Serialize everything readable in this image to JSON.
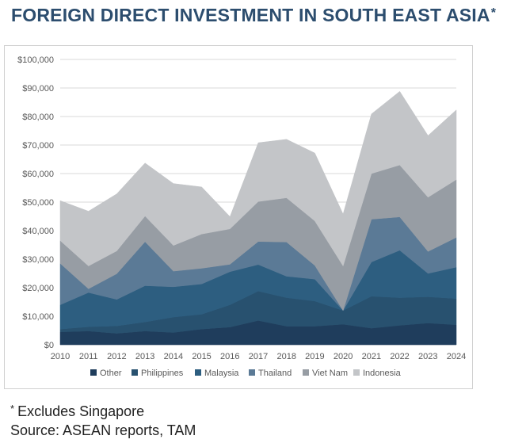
{
  "page": {
    "title": "FOREIGN DIRECT INVESTMENT IN SOUTH EAST ASIA",
    "title_asterisk": "*",
    "footnote_star": "*",
    "footnote_text": "Excludes Singapore",
    "source": "Source: ASEAN reports, TAM"
  },
  "colors": {
    "title": "#2c4d6e",
    "grid": "#d9d9d9",
    "tick_text": "#595959"
  },
  "chart_data": {
    "type": "area",
    "stacked": true,
    "title": "FOREIGN DIRECT INVESTMENT IN SOUTH EAST ASIA",
    "xlabel": "",
    "ylabel": "",
    "x": [
      "2010",
      "2011",
      "2012",
      "2013",
      "2014",
      "2015",
      "2016",
      "2017",
      "2018",
      "2019",
      "2020",
      "2021",
      "2022",
      "2023",
      "2024"
    ],
    "ylim": [
      0,
      100000
    ],
    "yticks": [
      0,
      10000,
      20000,
      30000,
      40000,
      50000,
      60000,
      70000,
      80000,
      90000,
      100000
    ],
    "ytick_labels": [
      "$0",
      "$10,000",
      "$20,000",
      "$30,000",
      "$40,000",
      "$50,000",
      "$60,000",
      "$70,000",
      "$80,000",
      "$90,000",
      "$100,000"
    ],
    "grid": true,
    "legend_position": "bottom",
    "series": [
      {
        "name": "Other",
        "color": "#1f3d5c",
        "values": [
          4500,
          4800,
          4000,
          4800,
          4300,
          5500,
          6200,
          8500,
          6500,
          6500,
          7200,
          5800,
          6800,
          7600,
          7000
        ]
      },
      {
        "name": "Philippines",
        "color": "#28516f",
        "values": [
          1000,
          1500,
          2600,
          3200,
          5400,
          5200,
          7800,
          10300,
          10000,
          8800,
          4800,
          11200,
          9700,
          9200,
          9200
        ]
      },
      {
        "name": "Malaysia",
        "color": "#2d5e80",
        "values": [
          8500,
          12000,
          9300,
          12700,
          10600,
          10600,
          11600,
          9300,
          7500,
          7700,
          0,
          12000,
          16600,
          8200,
          11000
        ]
      },
      {
        "name": "Thailand",
        "color": "#5b7a96",
        "values": [
          14500,
          1300,
          9000,
          15400,
          5500,
          5500,
          2600,
          8100,
          12000,
          4800,
          0,
          15000,
          11700,
          7700,
          10400
        ]
      },
      {
        "name": "Viet Nam",
        "color": "#979da4",
        "values": [
          8000,
          8000,
          8000,
          9000,
          9000,
          12000,
          12400,
          14000,
          15500,
          15600,
          15600,
          16000,
          18200,
          19000,
          20300
        ]
      },
      {
        "name": "Indonesia",
        "color": "#c3c5c8",
        "values": [
          14000,
          19200,
          20000,
          18600,
          21700,
          16500,
          4300,
          20600,
          20500,
          23800,
          18200,
          20900,
          25800,
          21600,
          24400
        ]
      }
    ]
  }
}
